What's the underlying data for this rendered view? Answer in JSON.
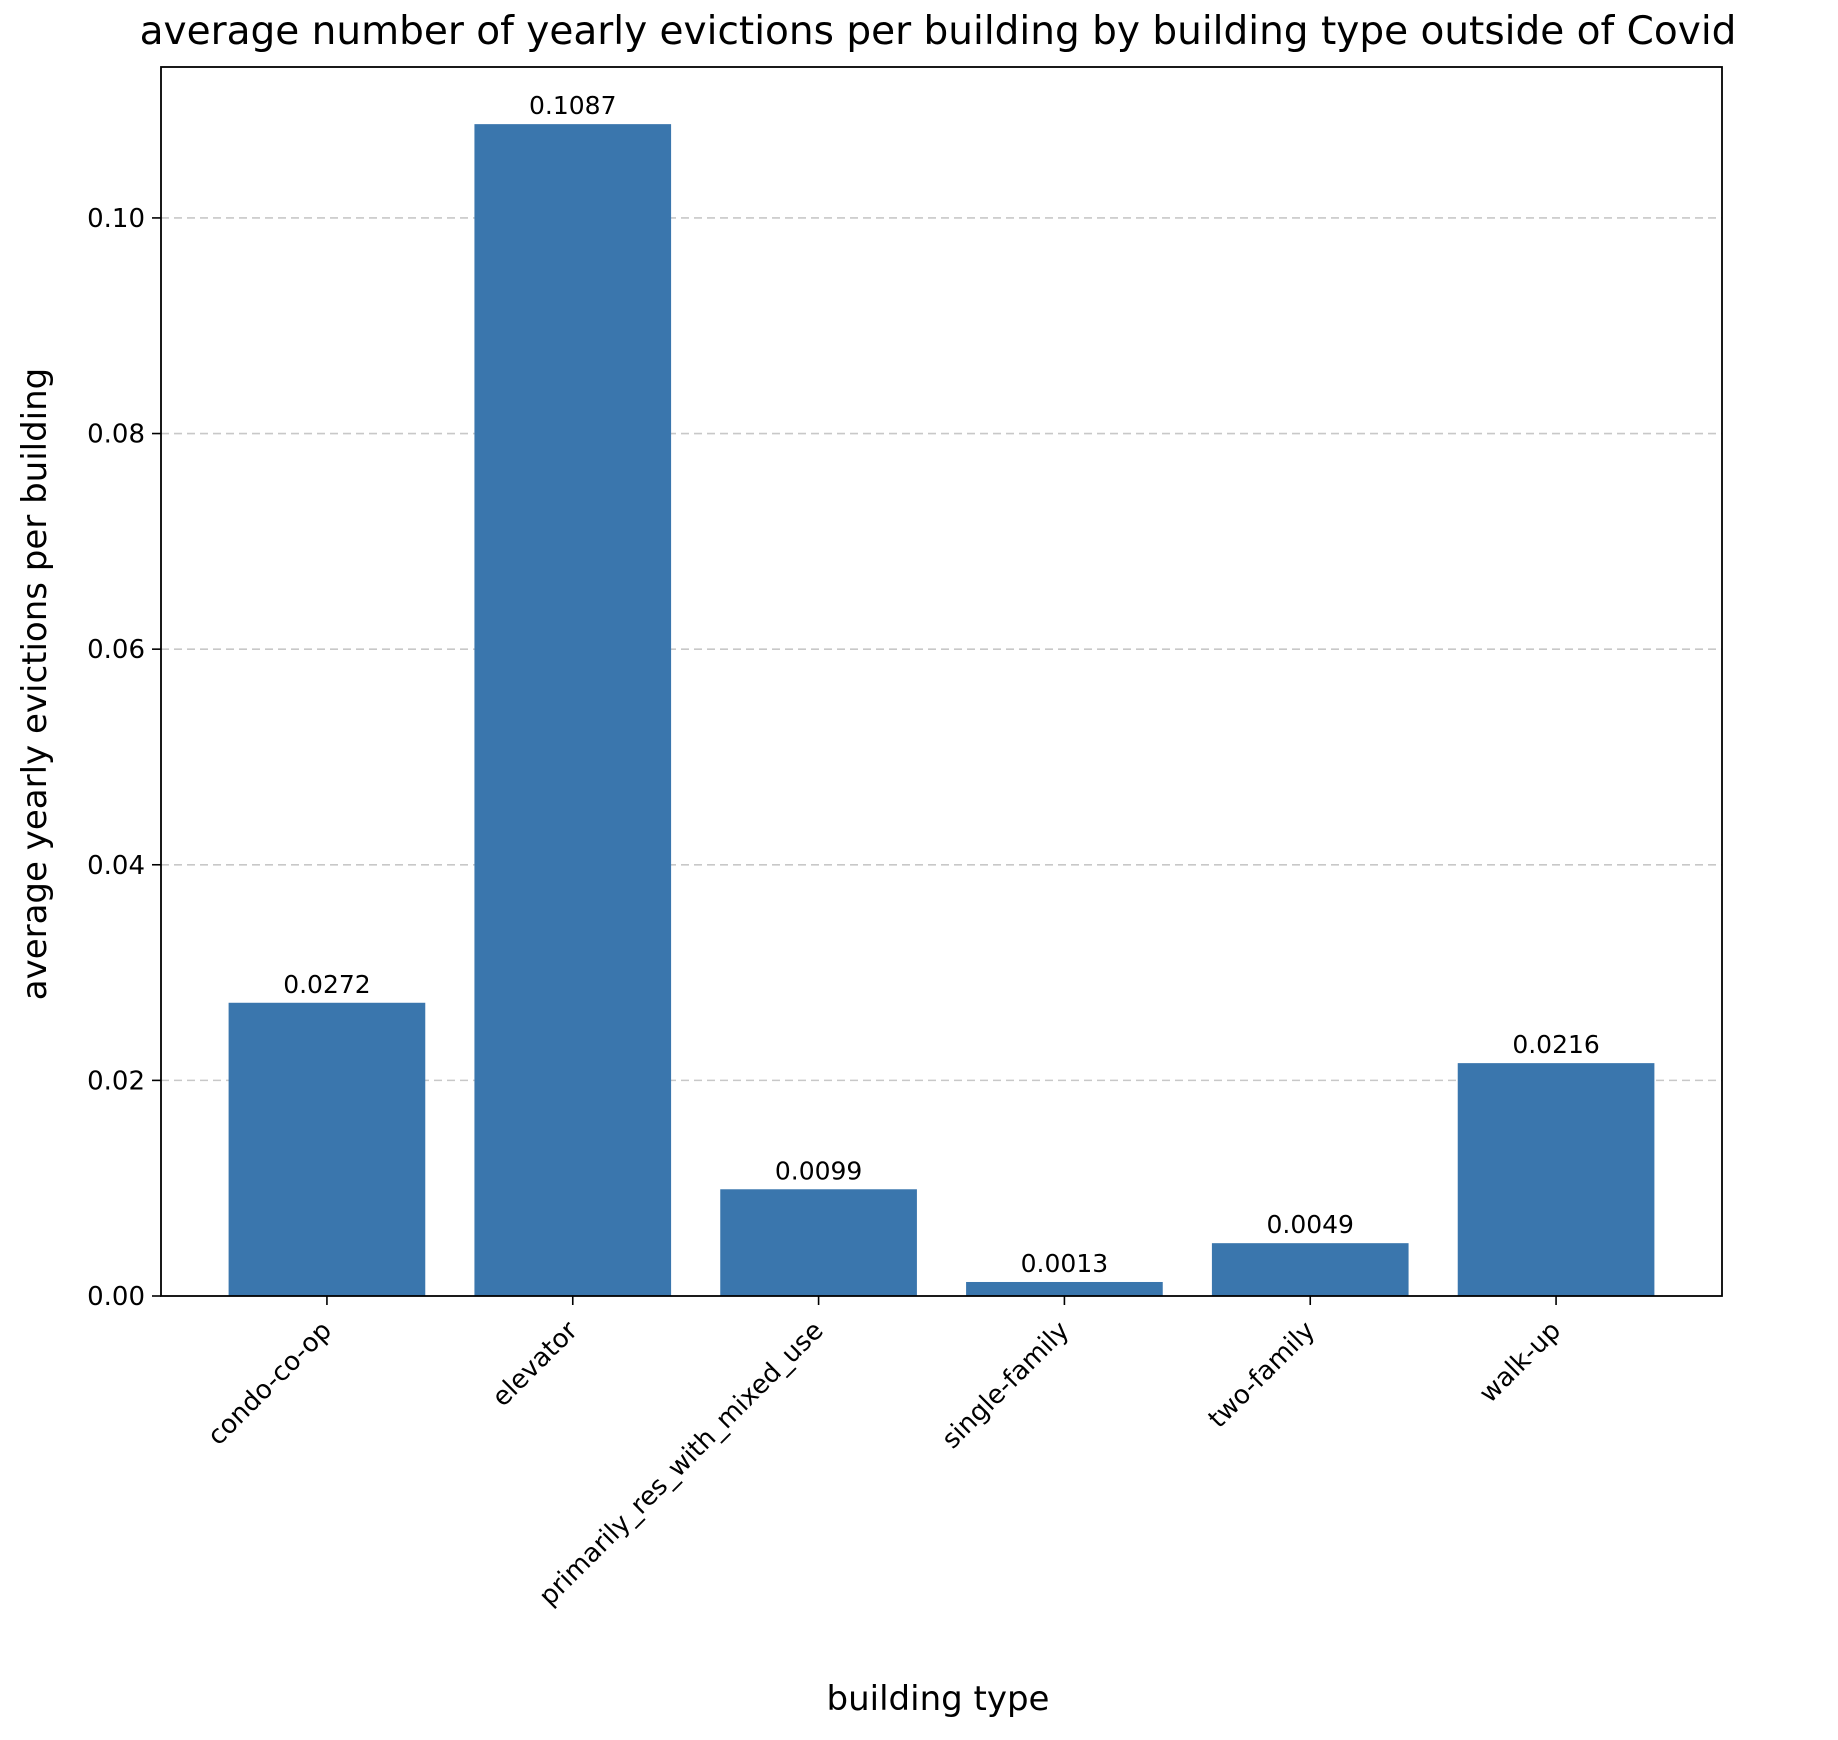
{
  "chart_data": {
    "type": "bar",
    "title": "average number of yearly evictions per building by building type outside of Covid",
    "xlabel": "building type",
    "ylabel": "average yearly evictions per building",
    "categories": [
      "condo-co-op",
      "elevator",
      "primarily_res_with_mixed_use",
      "single-family",
      "two-family",
      "walk-up"
    ],
    "values": [
      0.0272,
      0.1087,
      0.0099,
      0.0013,
      0.0049,
      0.0216
    ],
    "value_labels": [
      "0.0272",
      "0.1087",
      "0.0099",
      "0.0013",
      "0.0049",
      "0.0216"
    ],
    "ylim": [
      0,
      0.114
    ],
    "yticks": [
      0.0,
      0.02,
      0.04,
      0.06,
      0.08,
      0.1
    ],
    "ytick_labels": [
      "0.00",
      "0.02",
      "0.04",
      "0.06",
      "0.08",
      "0.10"
    ],
    "grid": "y-dashed",
    "legend": "none",
    "bar_color": "#3a76ad"
  }
}
